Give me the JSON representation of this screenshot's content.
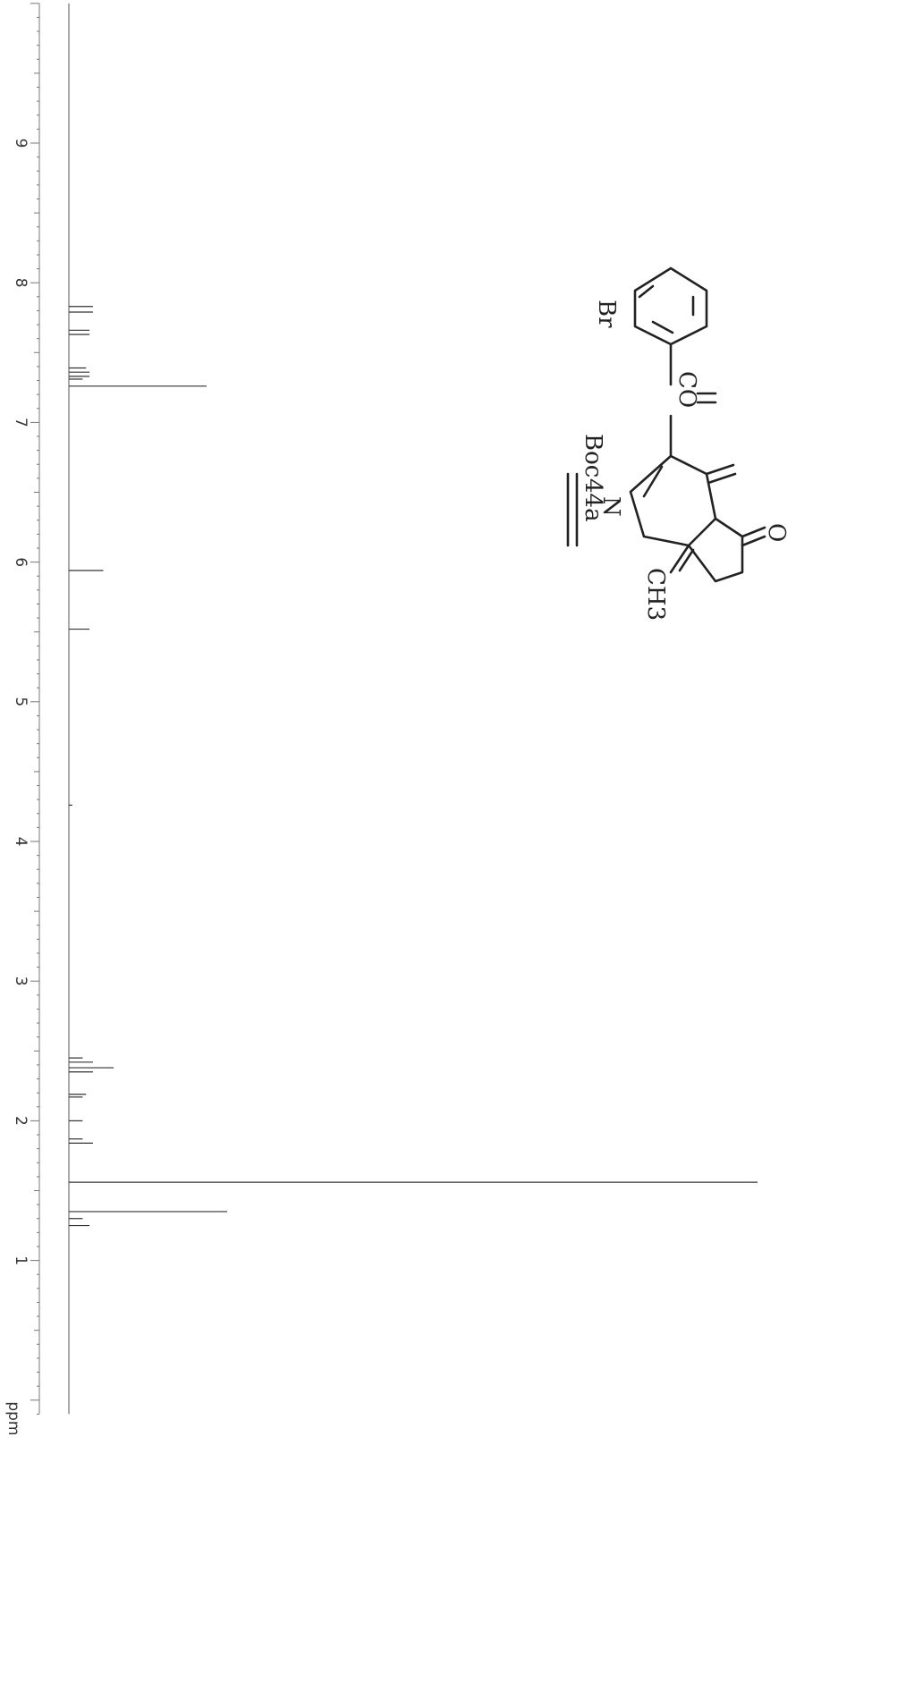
{
  "chart_data": {
    "type": "line",
    "title": "",
    "xlabel": "ppm",
    "ylabel": "",
    "orientation": "rotated-90-clockwise",
    "xlim": [
      10.0,
      -0.1
    ],
    "x_ticks": [
      "9",
      "8",
      "7",
      "6",
      "5",
      "4",
      "3",
      "2",
      "1"
    ],
    "grid": false,
    "peaks": [
      {
        "ppm": 7.83,
        "intensity": 0.035
      },
      {
        "ppm": 7.79,
        "intensity": 0.035
      },
      {
        "ppm": 7.66,
        "intensity": 0.03
      },
      {
        "ppm": 7.63,
        "intensity": 0.03
      },
      {
        "ppm": 7.39,
        "intensity": 0.025
      },
      {
        "ppm": 7.36,
        "intensity": 0.03
      },
      {
        "ppm": 7.33,
        "intensity": 0.03
      },
      {
        "ppm": 7.31,
        "intensity": 0.02
      },
      {
        "ppm": 7.26,
        "intensity": 0.2
      },
      {
        "ppm": 5.94,
        "intensity": 0.05
      },
      {
        "ppm": 5.52,
        "intensity": 0.03
      },
      {
        "ppm": 4.26,
        "intensity": 0.005
      },
      {
        "ppm": 2.45,
        "intensity": 0.02
      },
      {
        "ppm": 2.42,
        "intensity": 0.035
      },
      {
        "ppm": 2.38,
        "intensity": 0.065
      },
      {
        "ppm": 2.35,
        "intensity": 0.035
      },
      {
        "ppm": 2.19,
        "intensity": 0.025
      },
      {
        "ppm": 2.17,
        "intensity": 0.02
      },
      {
        "ppm": 2.0,
        "intensity": 0.02
      },
      {
        "ppm": 1.87,
        "intensity": 0.02
      },
      {
        "ppm": 1.84,
        "intensity": 0.035
      },
      {
        "ppm": 1.56,
        "intensity": 1.0
      },
      {
        "ppm": 1.35,
        "intensity": 0.23
      },
      {
        "ppm": 1.3,
        "intensity": 0.02
      },
      {
        "ppm": 1.25,
        "intensity": 0.03
      }
    ],
    "annotations": [
      {
        "text": "Br"
      },
      {
        "text": "CO"
      },
      {
        "text": "Boc"
      },
      {
        "text": "N"
      },
      {
        "text": "CH3"
      },
      {
        "text": "O"
      },
      {
        "text": "44a"
      }
    ]
  }
}
